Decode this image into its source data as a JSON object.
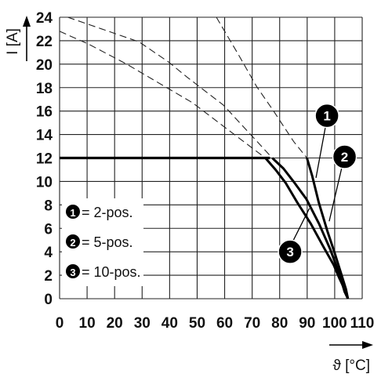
{
  "chart_data": {
    "type": "line",
    "xlabel": "ϑ [°C]",
    "ylabel": "I [A]",
    "xlim": [
      0,
      110
    ],
    "ylim": [
      0,
      24
    ],
    "x_ticks": [
      "0",
      "10",
      "20",
      "30",
      "40",
      "50",
      "60",
      "70",
      "80",
      "90",
      "100",
      "110"
    ],
    "y_ticks": [
      "0",
      "2",
      "4",
      "6",
      "8",
      "10",
      "12",
      "14",
      "16",
      "18",
      "20",
      "22",
      "24"
    ],
    "grid": true,
    "legend": {
      "placement": "left",
      "items": [
        {
          "number": "1",
          "label": "= 2-pos."
        },
        {
          "number": "2",
          "label": "= 5-pos."
        },
        {
          "number": "3",
          "label": "= 10-pos."
        }
      ]
    },
    "rated_current": {
      "x": [
        0,
        76.5
      ],
      "y": [
        12,
        12
      ]
    },
    "series": [
      {
        "number": "1",
        "x": [
          89.9,
          91.8,
          94.2,
          97.3,
          100.0,
          102.4,
          104.1,
          104.8
        ],
        "y": [
          12.0,
          10.5,
          8.2,
          5.8,
          3.9,
          2.1,
          0.8,
          0.0
        ],
        "derating": {
          "x": [
            57,
            64.8,
            71.6,
            77.8,
            85.1,
            89.9
          ],
          "y": [
            24,
            20.9,
            18.1,
            16.0,
            13.4,
            12.0
          ]
        }
      },
      {
        "number": "2",
        "x": [
          77.3,
          81.4,
          85.0,
          89.7,
          94.3,
          98.4,
          101.7,
          103.6,
          104.8
        ],
        "y": [
          12.0,
          11.1,
          10.0,
          8.5,
          6.4,
          4.2,
          2.1,
          0.6,
          0.0
        ],
        "derating": {
          "x": [
            3,
            28.9,
            39.5,
            46.3,
            59.6,
            77.3
          ],
          "y": [
            24,
            21.9,
            20.2,
            18.9,
            16.5,
            12.0
          ]
        }
      },
      {
        "number": "3",
        "x": [
          74.8,
          78.5,
          82.1,
          86.4,
          91.3,
          96.2,
          99.6,
          101.6,
          103.4,
          104.8
        ],
        "y": [
          12.0,
          11.0,
          9.9,
          8.2,
          6.4,
          4.3,
          2.9,
          1.8,
          0.9,
          0.0
        ],
        "derating": {
          "x": [
            0,
            10.6,
            24.4,
            35.3,
            48.4,
            60.7,
            74.8
          ],
          "y": [
            22.8,
            21.7,
            20.0,
            18.5,
            16.7,
            14.5,
            12.0
          ]
        }
      }
    ],
    "callouts": [
      {
        "number": "1",
        "at": [
          97.2,
          15.6
        ],
        "leader": [
          [
            96.6,
            14.6
          ],
          [
            93.2,
            10.3
          ]
        ]
      },
      {
        "number": "2",
        "at": [
          103.6,
          12.1
        ],
        "leader": [
          [
            102.5,
            11.1
          ],
          [
            98.0,
            6.6
          ]
        ]
      },
      {
        "number": "3",
        "at": [
          83.8,
          4.0
        ],
        "leader": [
          [
            84.8,
            4.9
          ],
          [
            90.8,
            7.7
          ]
        ]
      }
    ]
  }
}
